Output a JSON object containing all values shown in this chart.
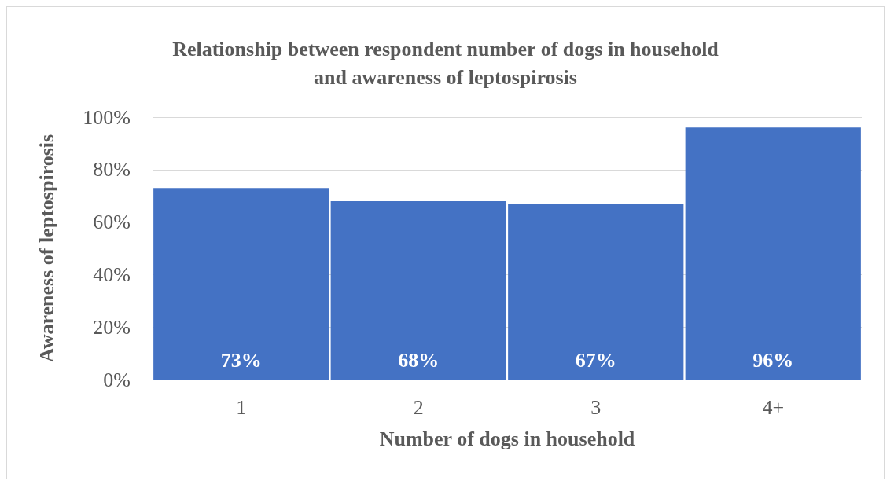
{
  "chart_data": {
    "type": "bar",
    "title": "Relationship between respondent number of dogs in household\nand awareness of leptospirosis",
    "xlabel": "Number of dogs in household",
    "ylabel": "Awareness of leptospirosis",
    "categories": [
      "1",
      "2",
      "3",
      "4+"
    ],
    "values": [
      73,
      68,
      67,
      96
    ],
    "value_labels": [
      "73%",
      "68%",
      "67%",
      "96%"
    ],
    "color": "#4472c4",
    "ylim": [
      0,
      100
    ],
    "yticks": [
      {
        "value": 0,
        "label": "0%"
      },
      {
        "value": 20,
        "label": "20%"
      },
      {
        "value": 40,
        "label": "40%"
      },
      {
        "value": 60,
        "label": "60%"
      },
      {
        "value": 80,
        "label": "80%"
      },
      {
        "value": 100,
        "label": "100%"
      }
    ],
    "grid": "y"
  }
}
